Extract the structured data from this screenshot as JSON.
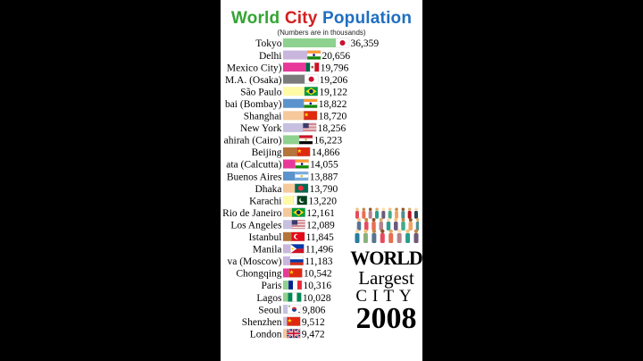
{
  "header": {
    "title_parts": [
      {
        "text": "World ",
        "color": "#33a532"
      },
      {
        "text": "City ",
        "color": "#d21f1f"
      },
      {
        "text": "Population",
        "color": "#1f6fc0"
      }
    ],
    "subtitle": "(Numbers are in thousands)"
  },
  "badge": {
    "world": "WORLD",
    "largest": "Largest",
    "city": "CITY",
    "year": "2008"
  },
  "chart_data": {
    "type": "bar",
    "title": "World City Population",
    "subtitle": "(Numbers are in thousands)",
    "orientation": "horizontal",
    "xlim": [
      0,
      36359
    ],
    "categories": [
      "Tokyo",
      "Delhi",
      "Mexico City)",
      "M.A. (Osaka)",
      "São Paulo",
      "bai (Bombay)",
      "Shanghai",
      "New York",
      "ahirah (Cairo)",
      "Beijing",
      "ata (Calcutta)",
      "Buenos Aires",
      "Dhaka",
      "Karachi",
      "Rio de Janeiro",
      "Los Angeles",
      "Istanbul",
      "Manila",
      "va (Moscow)",
      "Chongqing",
      "Paris",
      "Lagos",
      "Seoul",
      "Shenzhen",
      "London"
    ],
    "values": [
      36359,
      20656,
      19796,
      19206,
      19122,
      18822,
      18720,
      18256,
      16223,
      14866,
      14055,
      13887,
      13790,
      13220,
      12161,
      12089,
      11845,
      11496,
      11183,
      10542,
      10316,
      10028,
      9806,
      9512,
      9472
    ],
    "value_labels": [
      "36,359",
      "20,656",
      "19,796",
      "19,206",
      "19,122",
      "18,822",
      "18,720",
      "18,256",
      "16,223",
      "14,866",
      "14,055",
      "13,887",
      "13,790",
      "13,220",
      "12,161",
      "12,089",
      "11,845",
      "11,496",
      "11,183",
      "10,542",
      "10,316",
      "10,028",
      "9,806",
      "9,512",
      "9,472"
    ],
    "flags": [
      "japan-flag",
      "india-flag",
      "mexico-flag",
      "japan-flag",
      "brazil-flag",
      "india-flag",
      "china-flag",
      "usa-flag",
      "egypt-flag",
      "china-flag",
      "india-flag",
      "argentina-flag",
      "bangladesh-flag",
      "pakistan-flag",
      "brazil-flag",
      "usa-flag",
      "turkey-flag",
      "philippines-flag",
      "russia-flag",
      "china-flag",
      "france-flag",
      "nigeria-flag",
      "south-korea-flag",
      "china-flag",
      "uk-flag"
    ],
    "colors": [
      "#8fd18f",
      "#c9b6dc",
      "#e8399a",
      "#7b7b7b",
      "#fffaa6",
      "#5d93cc",
      "#f6c89a",
      "#c7c0e0",
      "#8fd18f",
      "#b5743a",
      "#e8399a",
      "#5d93cc",
      "#f6c89a",
      "#fffaa6",
      "#f6c89a",
      "#c7c0e0",
      "#b5743a",
      "#c9b6dc",
      "#c9b6dc",
      "#e8399a",
      "#8fd18f",
      "#8fd18f",
      "#c7c0e0",
      "#c7c0e0",
      "#f6c89a"
    ]
  }
}
